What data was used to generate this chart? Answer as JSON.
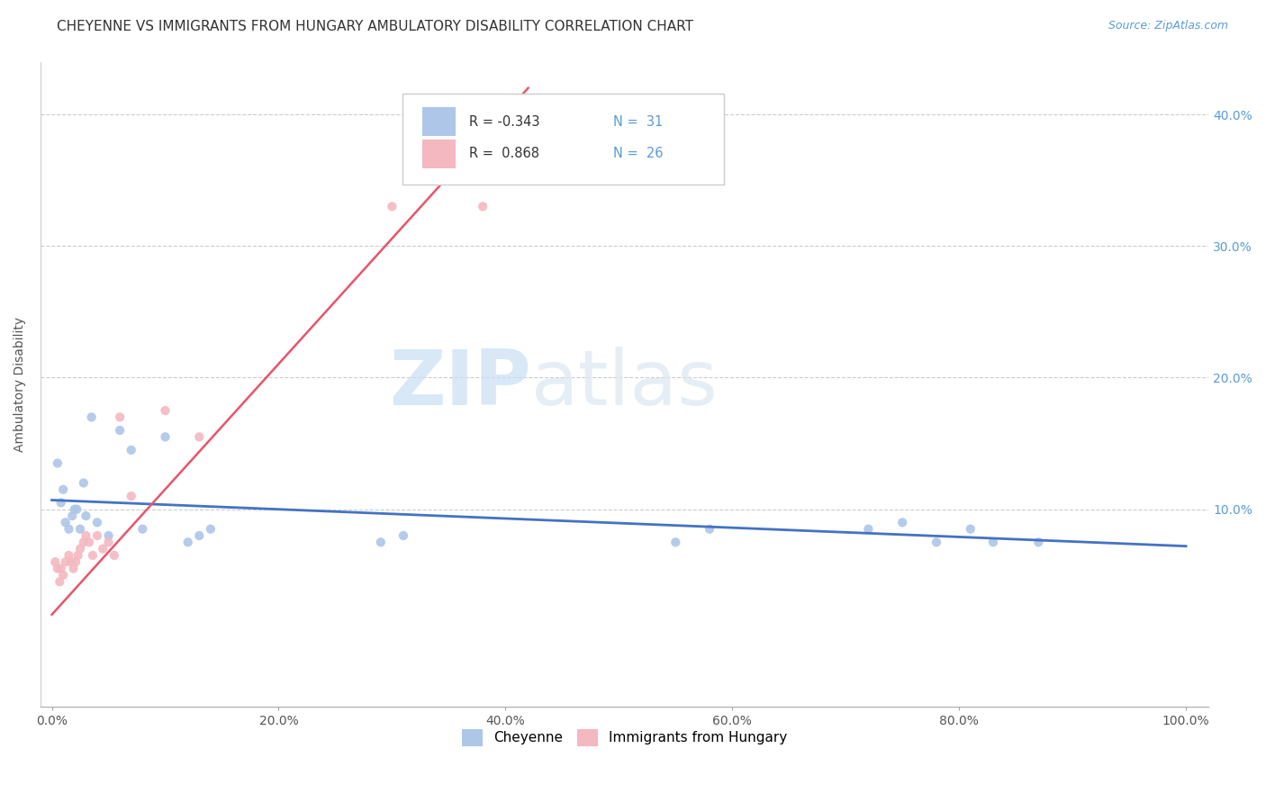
{
  "title": "CHEYENNE VS IMMIGRANTS FROM HUNGARY AMBULATORY DISABILITY CORRELATION CHART",
  "source_text": "Source: ZipAtlas.com",
  "ylabel": "Ambulatory Disability",
  "xlim": [
    -0.01,
    1.02
  ],
  "ylim": [
    -0.05,
    0.44
  ],
  "xtick_labels": [
    "0.0%",
    "",
    "",
    "",
    "",
    "",
    "20.0%",
    "",
    "",
    "",
    "",
    "",
    "40.0%",
    "",
    "",
    "",
    "",
    "",
    "60.0%",
    "",
    "",
    "",
    "",
    "",
    "80.0%",
    "",
    "",
    "",
    "",
    "",
    "100.0%"
  ],
  "xtick_vals": [
    0.0,
    0.2,
    0.4,
    0.6,
    0.8,
    1.0
  ],
  "ytick_labels": [
    "10.0%",
    "20.0%",
    "30.0%",
    "40.0%"
  ],
  "ytick_vals": [
    0.1,
    0.2,
    0.3,
    0.4
  ],
  "legend_r_cheyenne": "-0.343",
  "legend_n_cheyenne": "31",
  "legend_r_hungary": "0.868",
  "legend_n_hungary": "26",
  "cheyenne_color": "#aec6e8",
  "hungary_color": "#f4b8c1",
  "cheyenne_line_color": "#4472c4",
  "hungary_line_color": "#e8546a",
  "watermark_zip": "ZIP",
  "watermark_atlas": "atlas",
  "background_color": "#ffffff",
  "title_fontsize": 11,
  "axis_label_fontsize": 10,
  "tick_fontsize": 10,
  "marker_size": 55,
  "cheyenne_x": [
    0.005,
    0.008,
    0.01,
    0.012,
    0.015,
    0.018,
    0.02,
    0.022,
    0.025,
    0.028,
    0.03,
    0.035,
    0.04,
    0.05,
    0.06,
    0.07,
    0.08,
    0.1,
    0.12,
    0.13,
    0.14,
    0.29,
    0.31,
    0.55,
    0.58,
    0.72,
    0.75,
    0.78,
    0.81,
    0.83,
    0.87
  ],
  "cheyenne_y": [
    0.135,
    0.105,
    0.115,
    0.09,
    0.085,
    0.095,
    0.1,
    0.1,
    0.085,
    0.12,
    0.095,
    0.17,
    0.09,
    0.08,
    0.16,
    0.145,
    0.085,
    0.155,
    0.075,
    0.08,
    0.085,
    0.075,
    0.08,
    0.075,
    0.085,
    0.085,
    0.09,
    0.075,
    0.085,
    0.075,
    0.075
  ],
  "hungary_x": [
    0.003,
    0.005,
    0.007,
    0.008,
    0.01,
    0.012,
    0.015,
    0.017,
    0.019,
    0.021,
    0.023,
    0.025,
    0.028,
    0.03,
    0.033,
    0.036,
    0.04,
    0.045,
    0.05,
    0.055,
    0.06,
    0.07,
    0.1,
    0.13,
    0.3,
    0.38
  ],
  "hungary_y": [
    0.06,
    0.055,
    0.045,
    0.055,
    0.05,
    0.06,
    0.065,
    0.06,
    0.055,
    0.06,
    0.065,
    0.07,
    0.075,
    0.08,
    0.075,
    0.065,
    0.08,
    0.07,
    0.075,
    0.065,
    0.17,
    0.11,
    0.175,
    0.155,
    0.33,
    0.33
  ],
  "cheyenne_line_x": [
    0.0,
    1.0
  ],
  "cheyenne_line_y": [
    0.107,
    0.072
  ],
  "hungary_line_x": [
    0.0,
    0.42
  ],
  "hungary_line_y": [
    0.02,
    0.42
  ]
}
